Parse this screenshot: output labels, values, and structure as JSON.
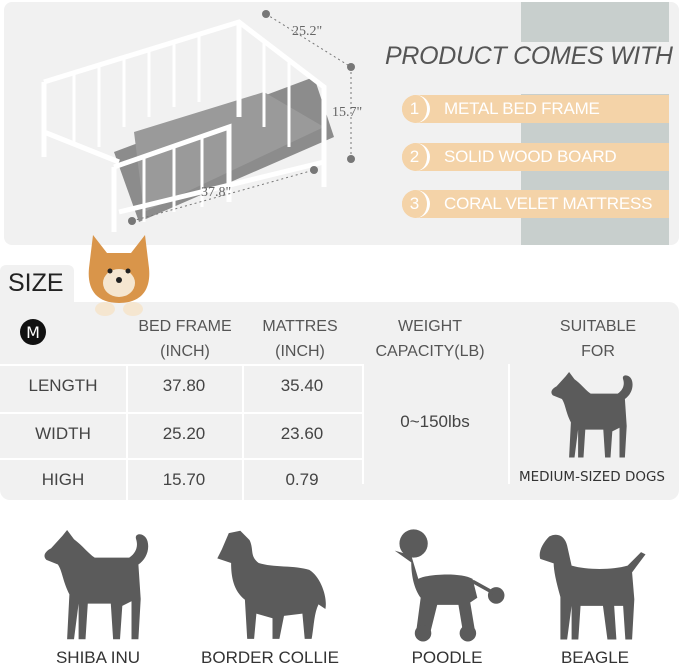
{
  "header": {
    "title": "PRODUCT COMES WITH"
  },
  "components": [
    {
      "number": "1",
      "label": "METAL BED FRAME"
    },
    {
      "number": "2",
      "label": "SOLID WOOD BOARD"
    },
    {
      "number": "3",
      "label": "CORAL VELET MATTRESS"
    }
  ],
  "dimensions": {
    "width": "25.2\"",
    "height": "15.7\"",
    "length": "37.8\""
  },
  "size": {
    "label": "SIZE",
    "badge": "M",
    "columns": {
      "bed_frame": [
        "BED FRAME",
        "(INCH)"
      ],
      "mattress": [
        "MATTRES",
        "(INCH)"
      ],
      "weight": [
        "WEIGHT",
        "CAPACITY(LB)"
      ],
      "suitable": [
        "SUITABLE",
        "FOR"
      ]
    },
    "rows": [
      {
        "label": "LENGTH",
        "bed_frame": "37.80",
        "mattress": "35.40"
      },
      {
        "label": "WIDTH",
        "bed_frame": "25.20",
        "mattress": "23.60"
      },
      {
        "label": "HIGH",
        "bed_frame": "15.70",
        "mattress": "0.79"
      }
    ],
    "weight_capacity": "0~150lbs",
    "suitable_for": "MEDIUM-SIZED DOGS"
  },
  "breeds": [
    "SHIBA INU",
    "BORDER COLLIE",
    "POODLE",
    "BEAGLE"
  ],
  "colors": {
    "accent": "#f4d3a8",
    "stripe": "#c8cfcd",
    "panel": "#f1f1f1",
    "silhouette": "#5b5b5b"
  }
}
